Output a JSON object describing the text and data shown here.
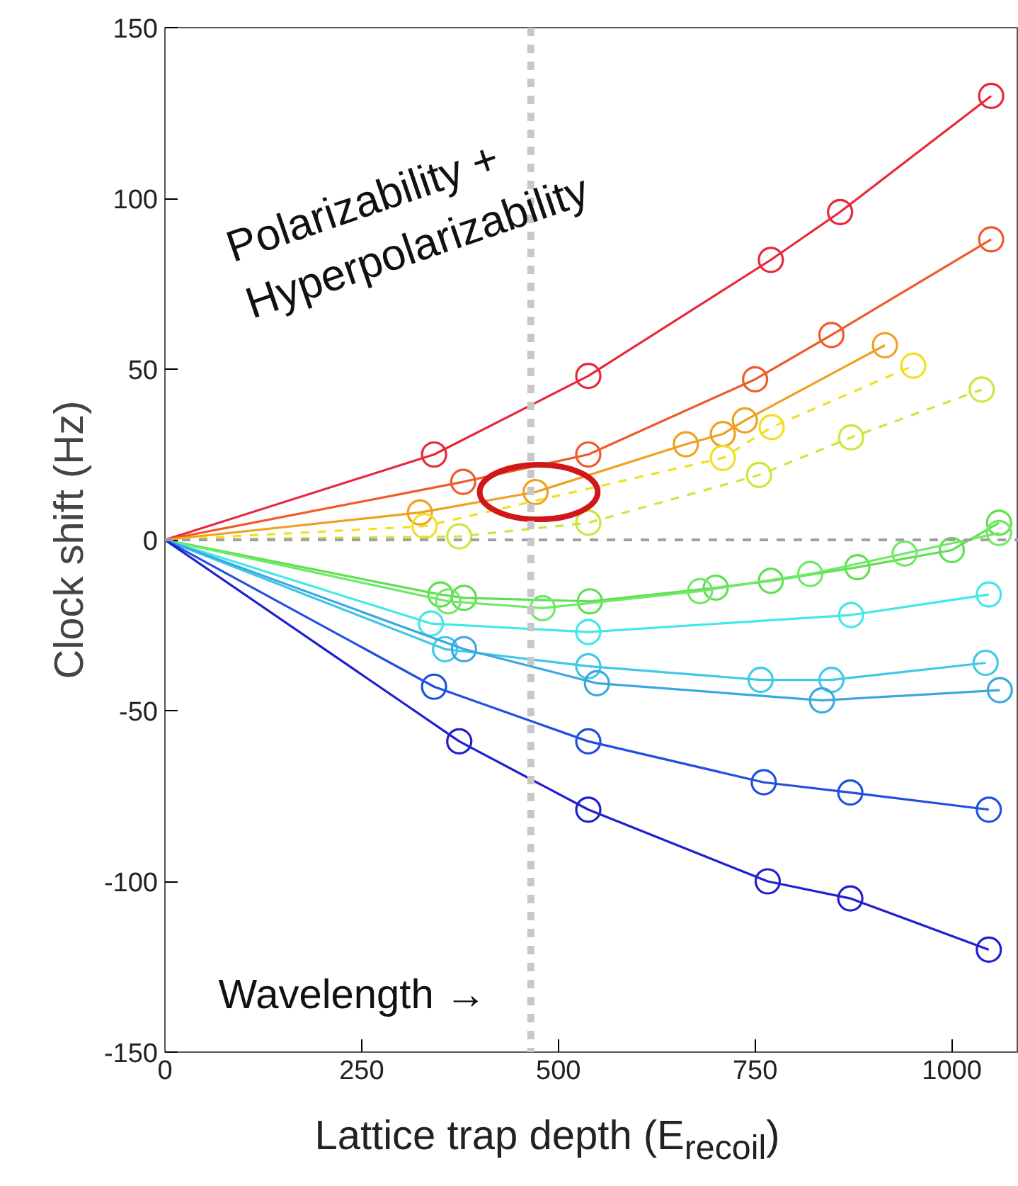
{
  "chart_data": {
    "type": "line",
    "xlabel": "Lattice trap depth (E$_{recoil}$)",
    "ylabel": "Clock shift (Hz)",
    "xlim": [
      0,
      1085
    ],
    "ylim": [
      -150,
      150
    ],
    "xticks": [
      0,
      250,
      500,
      750,
      1000
    ],
    "yticks": [
      -150,
      -100,
      -50,
      0,
      50,
      100,
      150
    ],
    "grid": false,
    "marker": "circle",
    "line_style": "solid",
    "annotations": [
      "Polarizability + Hyperpolarizability",
      "Wavelength →"
    ],
    "ref_lines": [
      {
        "axis": "y",
        "value": 0,
        "label": null,
        "color": "#a0a0a0",
        "line_style": "dashed"
      },
      {
        "axis": "x",
        "value": 465,
        "label": null,
        "color": "#c8c8c8",
        "line_style": "dashed"
      }
    ],
    "series": [
      {
        "color": "#e8283a",
        "x": [
          0,
          342,
          538,
          770,
          858,
          1050
        ],
        "values": [
          0,
          25,
          48,
          82,
          96,
          130
        ]
      },
      {
        "color": "#f05a28",
        "x": [
          0,
          379,
          538,
          750,
          847,
          1050
        ],
        "values": [
          0,
          17,
          25,
          47,
          60,
          88
        ]
      },
      {
        "color": "#f0a020",
        "x": [
          0,
          324,
          471,
          662,
          709,
          737,
          915
        ],
        "values": [
          0,
          8,
          14,
          28,
          31,
          35,
          57
        ]
      },
      {
        "color": "#f0e020",
        "line_style": "dashed",
        "x": [
          0,
          330,
          709,
          771,
          951
        ],
        "values": [
          0,
          4,
          24,
          33,
          51
        ]
      },
      {
        "color": "#c8e83c",
        "line_style": "dashed",
        "x": [
          0,
          374,
          538,
          755,
          872,
          1038
        ],
        "values": [
          0,
          1,
          5,
          19,
          30,
          44
        ]
      },
      {
        "color": "#60e050",
        "x": [
          0,
          350,
          380,
          540,
          700,
          770,
          880,
          1000,
          1060
        ],
        "values": [
          0,
          -16,
          -17,
          -18,
          -14,
          -12,
          -8,
          -3,
          5
        ]
      },
      {
        "color": "#70e868",
        "x": [
          0,
          360,
          480,
          680,
          820,
          940,
          1060
        ],
        "values": [
          0,
          -18,
          -20,
          -15,
          -10,
          -4,
          2
        ]
      },
      {
        "color": "#40e8e8",
        "x": [
          0,
          338,
          538,
          872,
          1047
        ],
        "values": [
          0,
          -24.5,
          -27,
          -22,
          -16
        ]
      },
      {
        "color": "#40c8e8",
        "x": [
          0,
          356,
          538,
          757,
          847,
          1043
        ],
        "values": [
          0,
          -32,
          -37,
          -41,
          -41,
          -36
        ]
      },
      {
        "color": "#3aa8e0",
        "x": [
          0,
          380,
          549,
          835,
          1061
        ],
        "values": [
          0,
          -32,
          -42,
          -47,
          -44
        ]
      },
      {
        "color": "#2050e0",
        "x": [
          0,
          342,
          538,
          761,
          871,
          1047
        ],
        "values": [
          0,
          -43,
          -59,
          -71,
          -74,
          -79
        ]
      },
      {
        "color": "#2020d0",
        "x": [
          0,
          374,
          538,
          766,
          871,
          1047
        ],
        "values": [
          0,
          -59,
          -79,
          -100,
          -105,
          -120
        ]
      }
    ]
  }
}
